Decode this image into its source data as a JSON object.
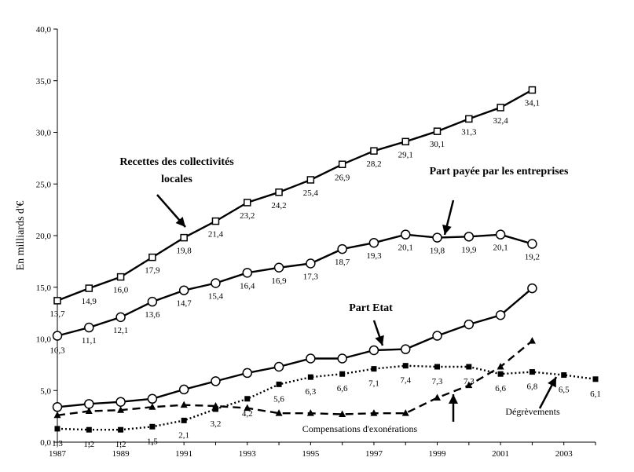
{
  "chart_data": {
    "type": "line",
    "title": "",
    "ylabel": "En milliards d'€",
    "xlabel": "",
    "xlim": [
      1987,
      2004
    ],
    "ylim": [
      0,
      40
    ],
    "y_ticks": [
      0,
      5,
      10,
      15,
      20,
      25,
      30,
      35,
      40
    ],
    "y_tick_labels": [
      "0,0",
      "5,0",
      "10,0",
      "15,0",
      "20,0",
      "25,0",
      "30,0",
      "35,0",
      "40,0"
    ],
    "x_ticks": [
      1987,
      1989,
      1991,
      1993,
      1995,
      1997,
      1999,
      2001,
      2003
    ],
    "x_tick_labels": [
      "1987",
      "1989",
      "1991",
      "1993",
      "1995",
      "1997",
      "1999",
      "2001",
      "2003"
    ],
    "grid": false,
    "series": [
      {
        "name": "Recettes des collectivités locales",
        "marker": "square-open",
        "style": "solid",
        "x": [
          1987,
          1988,
          1989,
          1990,
          1991,
          1992,
          1993,
          1994,
          1995,
          1996,
          1997,
          1998,
          1999,
          2000,
          2001,
          2002
        ],
        "values": [
          13.7,
          14.9,
          16.0,
          17.9,
          19.8,
          21.4,
          23.2,
          24.2,
          25.4,
          26.9,
          28.2,
          29.1,
          30.1,
          31.3,
          32.4,
          34.1
        ],
        "labels": [
          "13,7",
          "14,9",
          "16,0",
          "17,9",
          "19,8",
          "21,4",
          "23,2",
          "24,2",
          "25,4",
          "26,9",
          "28,2",
          "29,1",
          "30,1",
          "31,3",
          "32,4",
          "34,1"
        ]
      },
      {
        "name": "Part payée par les entreprises",
        "marker": "circle-open",
        "style": "solid",
        "x": [
          1987,
          1988,
          1989,
          1990,
          1991,
          1992,
          1993,
          1994,
          1995,
          1996,
          1997,
          1998,
          1999,
          2000,
          2001,
          2002
        ],
        "values": [
          10.3,
          11.1,
          12.1,
          13.6,
          14.7,
          15.4,
          16.4,
          16.9,
          17.3,
          18.7,
          19.3,
          20.1,
          19.8,
          19.9,
          20.1,
          19.2
        ],
        "labels": [
          "10,3",
          "11,1",
          "12,1",
          "13,6",
          "14,7",
          "15,4",
          "16,4",
          "16,9",
          "17,3",
          "18,7",
          "19,3",
          "20,1",
          "19,8",
          "19,9",
          "20,1",
          "19,2"
        ]
      },
      {
        "name": "Part Etat",
        "marker": "circle-open",
        "style": "solid",
        "x": [
          1987,
          1988,
          1989,
          1990,
          1991,
          1992,
          1993,
          1994,
          1995,
          1996,
          1997,
          1998,
          1999,
          2000,
          2001,
          2002
        ],
        "values": [
          3.4,
          3.7,
          3.9,
          4.2,
          5.1,
          5.9,
          6.7,
          7.3,
          8.1,
          8.1,
          8.9,
          9.0,
          10.3,
          11.4,
          12.3,
          14.9
        ]
      },
      {
        "name": "Dégrèvements",
        "marker": "square-filled",
        "style": "dotted",
        "x": [
          1987,
          1988,
          1989,
          1990,
          1991,
          1992,
          1993,
          1994,
          1995,
          1996,
          1997,
          1998,
          1999,
          2000,
          2001,
          2002,
          2003,
          2004
        ],
        "values": [
          1.3,
          1.2,
          1.2,
          1.5,
          2.1,
          3.2,
          4.2,
          5.6,
          6.3,
          6.6,
          7.1,
          7.4,
          7.3,
          7.3,
          6.6,
          6.8,
          6.5,
          6.1
        ],
        "labels": [
          "1,3",
          "1,2",
          "1,2",
          "1,5",
          "2,1",
          "3,2",
          "4,2",
          "5,6",
          "6,3",
          "6,6",
          "7,1",
          "7,4",
          "7,3",
          "7,3",
          "6,6",
          "6,8",
          "6,5",
          "6,1"
        ]
      },
      {
        "name": "Compensations d'exonérations",
        "marker": "triangle-filled",
        "style": "dashed",
        "x": [
          1987,
          1988,
          1989,
          1990,
          1991,
          1992,
          1993,
          1994,
          1995,
          1996,
          1997,
          1998,
          1999,
          2000,
          2001,
          2002
        ],
        "values": [
          2.6,
          3.0,
          3.1,
          3.4,
          3.6,
          3.5,
          3.3,
          2.8,
          2.8,
          2.7,
          2.8,
          2.8,
          4.3,
          5.5,
          7.3,
          9.8
        ]
      }
    ],
    "annotations": [
      {
        "lines": [
          "Recettes des collectivités",
          "locales"
        ],
        "style": "bold"
      },
      {
        "lines": [
          "Part payée par les entreprises"
        ],
        "style": "bold"
      },
      {
        "lines": [
          "Part Etat"
        ],
        "style": "bold"
      },
      {
        "lines": [
          "Dégrèvements"
        ],
        "style": "normal"
      },
      {
        "lines": [
          "Compensations d'exonérations"
        ],
        "style": "normal"
      }
    ]
  }
}
